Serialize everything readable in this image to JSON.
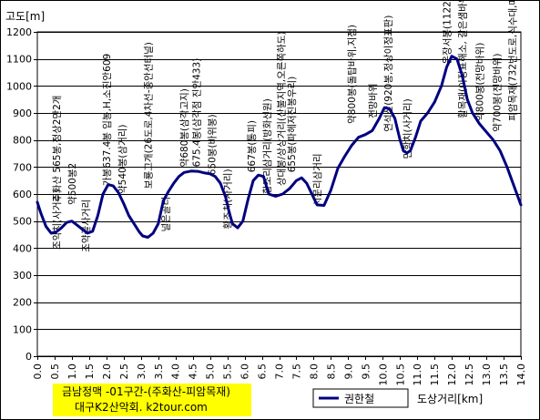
{
  "chart_data": {
    "type": "line",
    "title_lines": [
      "금남정맥 -01구간-(주화산-피암목재)",
      "대구K2산악회. k2tour.com"
    ],
    "xlabel": "도상거리[km]",
    "ylabel": "고도[m]",
    "xlim": [
      0,
      14
    ],
    "ylim": [
      0,
      1200
    ],
    "x_ticks": [
      "0.0",
      "0.5",
      "1.0",
      "1.5",
      "2.0",
      "2.5",
      "3.0",
      "3.5",
      "4.0",
      "4.5",
      "5.0",
      "5.5",
      "6.0",
      "6.5",
      "7.0",
      "7.5",
      "8.0",
      "8.5",
      "9.0",
      "9.5",
      "10.0",
      "10.5",
      "11.0",
      "11.5",
      "12.0",
      "12.5",
      "13.0",
      "13.5",
      "14.0"
    ],
    "y_ticks": [
      "0",
      "100",
      "200",
      "300",
      "400",
      "500",
      "600",
      "700",
      "800",
      "900",
      "1000",
      "1100",
      "1200"
    ],
    "grid": true,
    "legend_position": "bottom-center",
    "line_color": "#000080",
    "series": [
      {
        "name": "권한철",
        "x": [
          0.0,
          0.1,
          0.25,
          0.4,
          0.55,
          0.7,
          0.85,
          1.0,
          1.15,
          1.3,
          1.45,
          1.6,
          1.75,
          1.9,
          2.05,
          2.2,
          2.35,
          2.5,
          2.65,
          2.8,
          2.95,
          3.05,
          3.2,
          3.35,
          3.5,
          3.65,
          3.8,
          3.95,
          4.1,
          4.25,
          4.45,
          4.65,
          4.85,
          5.0,
          5.15,
          5.3,
          5.45,
          5.55,
          5.65,
          5.8,
          5.95,
          6.1,
          6.25,
          6.4,
          6.55,
          6.7,
          6.9,
          7.1,
          7.3,
          7.5,
          7.65,
          7.8,
          7.95,
          8.1,
          8.3,
          8.5,
          8.7,
          8.9,
          9.1,
          9.3,
          9.5,
          9.7,
          9.9,
          10.05,
          10.2,
          10.35,
          10.5,
          10.6,
          10.7,
          10.8,
          10.95,
          11.1,
          11.3,
          11.5,
          11.7,
          11.85,
          12.0,
          12.15,
          12.3,
          12.45,
          12.6,
          12.8,
          13.0,
          13.2,
          13.4,
          13.6,
          13.8,
          14.0
        ],
        "y": [
          570,
          530,
          480,
          455,
          460,
          475,
          495,
          500,
          485,
          470,
          455,
          462,
          520,
          600,
          635,
          630,
          605,
          565,
          520,
          490,
          460,
          445,
          440,
          455,
          490,
          575,
          610,
          640,
          665,
          680,
          685,
          684,
          678,
          675,
          665,
          640,
          590,
          535,
          490,
          475,
          500,
          580,
          650,
          670,
          665,
          600,
          592,
          600,
          620,
          650,
          660,
          640,
          600,
          560,
          558,
          615,
          695,
          740,
          780,
          810,
          820,
          835,
          880,
          920,
          915,
          880,
          800,
          760,
          752,
          760,
          810,
          870,
          900,
          940,
          1000,
          1070,
          1110,
          1100,
          1040,
          950,
          900,
          860,
          830,
          800,
          760,
          700,
          630,
          560
        ]
      }
    ],
    "annotations": [
      {
        "x": 0.55,
        "y": 570,
        "text": "주화산 565봉,정상2만2개"
      },
      {
        "x": 0.55,
        "y": 395,
        "text": "조약치(사거리)"
      },
      {
        "x": 1.0,
        "y": 560,
        "text": "약500봉2"
      },
      {
        "x": 1.4,
        "y": 385,
        "text": "조약골사거리"
      },
      {
        "x": 2.0,
        "y": 630,
        "text": "가봉637.4봉 입봉,H,소진안609"
      },
      {
        "x": 2.45,
        "y": 600,
        "text": "약540봉(삼거리)"
      },
      {
        "x": 3.2,
        "y": 620,
        "text": "보룡고개(26도로,4차선-종안선터널)"
      },
      {
        "x": 3.7,
        "y": 460,
        "text": "널은골티"
      },
      {
        "x": 4.25,
        "y": 700,
        "text": "약680봉(삼각고지)"
      },
      {
        "x": 4.6,
        "y": 700,
        "text": "675.4봉(삼각점 진안433)"
      },
      {
        "x": 5.05,
        "y": 670,
        "text": "650봉(바위봉)"
      },
      {
        "x": 5.5,
        "y": 470,
        "text": "황조치(사거리)"
      },
      {
        "x": 6.2,
        "y": 680,
        "text": "667봉(통피)"
      },
      {
        "x": 6.65,
        "y": 600,
        "text": "황조리삼거리(방화선원)"
      },
      {
        "x": 7.05,
        "y": 630,
        "text": "상대봉/상상거리(산불지역,오른쪽하도)"
      },
      {
        "x": 7.35,
        "y": 680,
        "text": "655봉(파헤저진봉우리)"
      },
      {
        "x": 8.1,
        "y": 555,
        "text": "시문리삼거리"
      },
      {
        "x": 9.1,
        "y": 860,
        "text": "약800봉(돌탑바위,지점)"
      },
      {
        "x": 9.7,
        "y": 880,
        "text": "전망바위"
      },
      {
        "x": 10.15,
        "y": 830,
        "text": "연석산(920봉,정상이정표판)"
      },
      {
        "x": 10.7,
        "y": 730,
        "text": "만항치(사거리)"
      },
      {
        "x": 11.85,
        "y": 1080,
        "text": "운장서봉(1122봉,정상석,이정표)"
      },
      {
        "x": 12.3,
        "y": 880,
        "text": "활목재(이정표해소, 갈은샘바위)"
      },
      {
        "x": 12.8,
        "y": 870,
        "text": "약800봉(전망바위)"
      },
      {
        "x": 13.3,
        "y": 830,
        "text": "약700봉(전망바위)"
      },
      {
        "x": 13.75,
        "y": 870,
        "text": "피암목재(732번도로,식수대,매점)"
      }
    ]
  }
}
